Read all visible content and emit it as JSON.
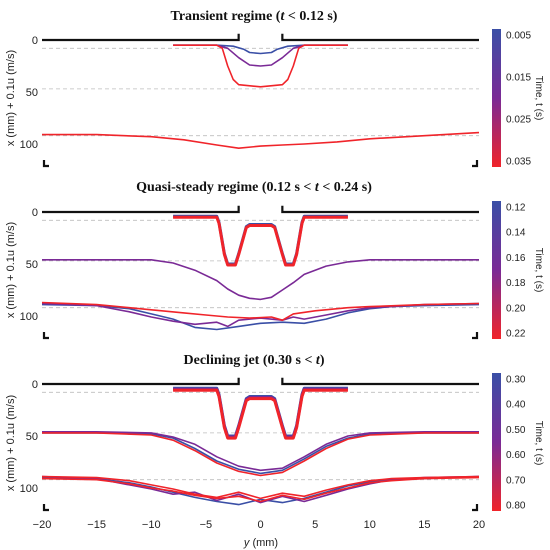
{
  "figure": {
    "xlabel": "y (mm)",
    "xlabel_italic": "y",
    "xlabel_unit": " (mm)",
    "xticks": [
      "−20",
      "−15",
      "−10",
      "−5",
      "0",
      "5",
      "10",
      "15",
      "20"
    ],
    "colors": {
      "early": "#3a4fa6",
      "mid": "#7a2a96",
      "late": "#f0242a",
      "nozzle": "#111111",
      "grid": "#bdbdbd"
    }
  },
  "panels": [
    {
      "title_parts": [
        "Transient regime (",
        "t",
        " < 0.12 s)"
      ],
      "ylabel": "x (mm) + 0.1u (m/s)",
      "yticks": [
        "0",
        "50",
        "100"
      ],
      "colorbar": {
        "title": "Time, t (s)",
        "ticks": [
          "0.005",
          "0.015",
          "0.025",
          "0.035"
        ]
      }
    },
    {
      "title_parts": [
        "Quasi-steady regime (0.12 s < ",
        "t",
        " < 0.24 s)"
      ],
      "ylabel": "x (mm) + 0.1u (m/s)",
      "yticks": [
        "0",
        "50",
        "100"
      ],
      "colorbar": {
        "title": "Time, t (s)",
        "ticks": [
          "0.12",
          "0.14",
          "0.16",
          "0.18",
          "0.20",
          "0.22"
        ]
      }
    },
    {
      "title_parts": [
        "Declining jet (0.30 s < ",
        "t",
        ")"
      ],
      "ylabel": "x (mm) + 0.1u (m/s)",
      "yticks": [
        "0",
        "50",
        "100"
      ],
      "colorbar": {
        "title": "Time, t (s)",
        "ticks": [
          "0.30",
          "0.40",
          "0.50",
          "0.60",
          "0.70",
          "0.80"
        ]
      }
    }
  ],
  "chart_data": [
    {
      "type": "line",
      "title": "Transient regime (t < 0.12 s)",
      "xlabel": "y (mm)",
      "ylabel": "x (mm) + 0.1u (m/s)",
      "xlim": [
        -20,
        20
      ],
      "ylim": [
        120,
        -5
      ],
      "y_axis_reversed": true,
      "dashed_gridlines_y": [
        8,
        47,
        92
      ],
      "colorbar_ticks": [
        0.005,
        0.015,
        0.025,
        0.035
      ],
      "series": [
        {
          "color": "#3a4fa6",
          "x": [
            -8,
            -4,
            -2.5,
            -1.5,
            -1,
            0,
            1,
            1.5,
            2.5,
            4,
            8
          ],
          "y": [
            5,
            5,
            6,
            9,
            12,
            13,
            12,
            9,
            6,
            5,
            5
          ]
        },
        {
          "color": "#7a2a96",
          "x": [
            -8,
            -4,
            -3,
            -2,
            -1,
            0,
            1,
            2,
            3,
            4,
            8
          ],
          "y": [
            5,
            5,
            8,
            17,
            24,
            25,
            24,
            17,
            8,
            5,
            5
          ]
        },
        {
          "color": "#f0242a",
          "x": [
            -8,
            -4,
            -3.5,
            -3,
            -2.5,
            -2,
            0,
            2,
            2.5,
            3,
            3.5,
            4,
            8
          ],
          "y": [
            5,
            5,
            8,
            25,
            38,
            43,
            45,
            43,
            38,
            25,
            8,
            5,
            5
          ]
        },
        {
          "color": "#f0242a",
          "x": [
            -20,
            -15,
            -10,
            -7,
            -4,
            -2,
            0,
            2,
            4,
            7,
            10,
            15,
            20
          ],
          "y": [
            91,
            91,
            93,
            96,
            101,
            104,
            102,
            101,
            100,
            98,
            95,
            92,
            89
          ]
        }
      ]
    },
    {
      "type": "line",
      "title": "Quasi-steady regime (0.12 s < t < 0.24 s)",
      "xlabel": "y (mm)",
      "ylabel": "x (mm) + 0.1u (m/s)",
      "xlim": [
        -20,
        20
      ],
      "ylim": [
        120,
        -5
      ],
      "y_axis_reversed": true,
      "dashed_gridlines_y": [
        8,
        47,
        92
      ],
      "colorbar_ticks": [
        0.12,
        0.14,
        0.16,
        0.18,
        0.2,
        0.22
      ],
      "series": [
        {
          "color": "#3a4fa6",
          "x": [
            -8,
            -4,
            -3.8,
            -3.3,
            -3,
            -2.3,
            -2,
            -1.3,
            -1,
            1,
            1.3,
            2,
            2.3,
            3,
            3.3,
            3.8,
            4,
            8
          ],
          "y": [
            4,
            4,
            10,
            40,
            50,
            50,
            40,
            14,
            12,
            12,
            14,
            40,
            50,
            50,
            40,
            10,
            4,
            4
          ]
        },
        {
          "color": "#f0242a",
          "x": [
            -8,
            -4,
            -3.8,
            -3.3,
            -3,
            -2.3,
            -2,
            -1.3,
            -1,
            1,
            1.3,
            2,
            2.3,
            3,
            3.3,
            3.8,
            4,
            8
          ],
          "y": [
            5,
            5,
            11,
            41,
            51,
            51,
            41,
            15,
            13,
            13,
            15,
            41,
            51,
            51,
            41,
            11,
            5,
            5
          ]
        },
        {
          "color": "#7a2a96",
          "x": [
            -20,
            -15,
            -10,
            -8,
            -6,
            -4,
            -3,
            -2,
            -1,
            0,
            1,
            2,
            3,
            4,
            6,
            8,
            10,
            15,
            20
          ],
          "y": [
            46,
            46,
            46,
            49,
            56,
            66,
            74,
            80,
            83,
            84,
            82,
            75,
            68,
            60,
            52,
            48,
            46,
            46,
            46
          ]
        },
        {
          "color": "#3a4fa6",
          "x": [
            -20,
            -15,
            -12,
            -10,
            -8,
            -6,
            -4,
            -2,
            0,
            2,
            4,
            6,
            8,
            10,
            12,
            15,
            20
          ],
          "y": [
            89,
            90,
            93,
            98,
            103,
            111,
            113,
            110,
            107,
            106,
            107,
            103,
            97,
            93,
            91,
            90,
            89
          ]
        },
        {
          "color": "#7a2a96",
          "x": [
            -20,
            -15,
            -12,
            -10,
            -8,
            -6,
            -4,
            -3,
            -2,
            0,
            2,
            3,
            4,
            6,
            8,
            10,
            15,
            20
          ],
          "y": [
            88,
            90,
            96,
            101,
            105,
            108,
            106,
            110,
            104,
            102,
            104,
            101,
            103,
            99,
            95,
            92,
            89,
            88
          ]
        },
        {
          "color": "#f0242a",
          "x": [
            -20,
            -15,
            -12,
            -10,
            -7,
            -5,
            -3,
            -1,
            1,
            2,
            3,
            5,
            8,
            10,
            15,
            20
          ],
          "y": [
            87,
            89,
            92,
            94,
            97,
            99,
            101,
            102,
            101,
            104,
            98,
            95,
            92,
            91,
            89,
            88
          ]
        }
      ]
    },
    {
      "type": "line",
      "title": "Declining jet (0.30 s < t)",
      "xlabel": "y (mm)",
      "ylabel": "x (mm) + 0.1u (m/s)",
      "xlim": [
        -20,
        20
      ],
      "ylim": [
        120,
        -5
      ],
      "y_axis_reversed": true,
      "dashed_gridlines_y": [
        8,
        47,
        92
      ],
      "colorbar_ticks": [
        0.3,
        0.4,
        0.5,
        0.6,
        0.7,
        0.8
      ],
      "series": [
        {
          "color": "#3a4fa6",
          "x": [
            -8,
            -4,
            -3.8,
            -3.3,
            -3,
            -2.3,
            -2,
            -1.3,
            -1,
            1,
            1.3,
            2,
            2.3,
            3,
            3.3,
            3.8,
            4,
            8
          ],
          "y": [
            4,
            4,
            10,
            40,
            50,
            50,
            40,
            14,
            12,
            12,
            14,
            40,
            50,
            50,
            40,
            10,
            4,
            4
          ]
        },
        {
          "color": "#7a2a96",
          "x": [
            -8,
            -4,
            -3.8,
            -3.3,
            -3,
            -2.3,
            -2,
            -1.3,
            -1,
            1,
            1.3,
            2,
            2.3,
            3,
            3.3,
            3.8,
            4,
            8
          ],
          "y": [
            5,
            5,
            11,
            41,
            51,
            51,
            41,
            15,
            13,
            13,
            15,
            41,
            51,
            51,
            41,
            11,
            5,
            5
          ]
        },
        {
          "color": "#f0242a",
          "x": [
            -8,
            -4,
            -3.8,
            -3.3,
            -3,
            -2.3,
            -2,
            -1.3,
            -1,
            1,
            1.3,
            2,
            2.3,
            3,
            3.3,
            3.8,
            4,
            8
          ],
          "y": [
            6,
            6,
            12,
            42,
            52,
            52,
            42,
            16,
            14,
            14,
            16,
            42,
            52,
            52,
            42,
            12,
            6,
            6
          ]
        },
        {
          "color": "#3a4fa6",
          "x": [
            -20,
            -15,
            -10,
            -8,
            -6,
            -4,
            -2,
            0,
            2,
            4,
            6,
            8,
            10,
            15,
            20
          ],
          "y": [
            47,
            47,
            48,
            52,
            62,
            74,
            82,
            86,
            83,
            72,
            60,
            52,
            48,
            47,
            47
          ]
        },
        {
          "color": "#7a2a96",
          "x": [
            -20,
            -15,
            -10,
            -8,
            -6,
            -4,
            -2,
            0,
            2,
            4,
            6,
            8,
            10,
            15,
            20
          ],
          "y": [
            46,
            46,
            47,
            51,
            58,
            70,
            79,
            83,
            81,
            70,
            58,
            50,
            47,
            46,
            46
          ]
        },
        {
          "color": "#f0242a",
          "x": [
            -20,
            -15,
            -10,
            -8,
            -6,
            -4,
            -2,
            0,
            2,
            4,
            6,
            8,
            10,
            15,
            20
          ],
          "y": [
            47,
            47,
            49,
            54,
            64,
            76,
            84,
            88,
            85,
            74,
            62,
            53,
            49,
            47,
            47
          ]
        },
        {
          "color": "#3a4fa6",
          "x": [
            -20,
            -15,
            -12,
            -10,
            -8,
            -6,
            -4,
            -2,
            0,
            2,
            4,
            6,
            8,
            10,
            12,
            15,
            20
          ],
          "y": [
            90,
            91,
            95,
            99,
            104,
            109,
            113,
            116,
            111,
            114,
            110,
            104,
            98,
            94,
            92,
            91,
            89
          ]
        },
        {
          "color": "#7a2a96",
          "x": [
            -20,
            -15,
            -12,
            -10,
            -8,
            -6,
            -4,
            -2,
            0,
            2,
            4,
            6,
            8,
            10,
            12,
            15,
            20
          ],
          "y": [
            89,
            91,
            97,
            101,
            106,
            104,
            112,
            106,
            114,
            108,
            113,
            107,
            101,
            96,
            92,
            90,
            89
          ]
        },
        {
          "color": "#f0242a",
          "x": [
            -20,
            -15,
            -12,
            -10,
            -8,
            -6,
            -4,
            -2,
            0,
            2,
            4,
            6,
            8,
            10,
            12,
            15,
            20
          ],
          "y": [
            91,
            92,
            96,
            100,
            103,
            107,
            110,
            108,
            113,
            107,
            111,
            105,
            100,
            95,
            93,
            91,
            90
          ]
        },
        {
          "color": "#f0242a",
          "x": [
            -20,
            -15,
            -12,
            -10,
            -8,
            -6,
            -4,
            -2,
            0,
            2,
            4,
            6,
            8,
            10,
            12,
            15,
            20
          ],
          "y": [
            89,
            90,
            93,
            97,
            101,
            106,
            109,
            104,
            110,
            105,
            108,
            102,
            97,
            93,
            91,
            90,
            89
          ]
        }
      ]
    }
  ]
}
